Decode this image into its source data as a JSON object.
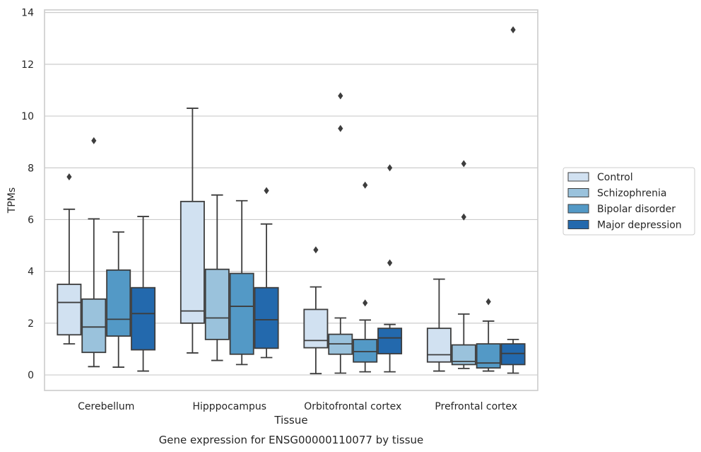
{
  "chart_data": {
    "type": "box",
    "title": "",
    "xlabel": "Tissue",
    "ylabel": "TPMs",
    "caption": "Gene expression for ENSG00000110077 by tissue",
    "ylim": [
      -0.6,
      14.1
    ],
    "yticks": [
      0,
      2,
      4,
      6,
      8,
      10,
      12,
      14
    ],
    "grid": "horizontal",
    "legend_position": "right",
    "categories": [
      "Cerebellum",
      "Hipppocampus",
      "Orbitofrontal cortex",
      "Prefrontal cortex"
    ],
    "series": [
      {
        "name": "Control",
        "color": "#d1e1f1",
        "boxes": [
          {
            "whislo": 1.2,
            "q1": 1.55,
            "med": 2.8,
            "q3": 3.5,
            "whishi": 6.4,
            "fliers": [
              7.65
            ]
          },
          {
            "whislo": 0.85,
            "q1": 2.0,
            "med": 2.47,
            "q3": 6.7,
            "whishi": 10.3,
            "fliers": []
          },
          {
            "whislo": 0.05,
            "q1": 1.05,
            "med": 1.33,
            "q3": 2.53,
            "whishi": 3.4,
            "fliers": [
              4.83
            ]
          },
          {
            "whislo": 0.15,
            "q1": 0.5,
            "med": 0.78,
            "q3": 1.8,
            "whishi": 3.7,
            "fliers": []
          }
        ]
      },
      {
        "name": "Schizophrenia",
        "color": "#9ac2dc",
        "boxes": [
          {
            "whislo": 0.32,
            "q1": 0.87,
            "med": 1.85,
            "q3": 2.93,
            "whishi": 6.03,
            "fliers": [
              9.05
            ]
          },
          {
            "whislo": 0.56,
            "q1": 1.37,
            "med": 2.2,
            "q3": 4.08,
            "whishi": 6.95,
            "fliers": []
          },
          {
            "whislo": 0.07,
            "q1": 0.8,
            "med": 1.2,
            "q3": 1.57,
            "whishi": 2.2,
            "fliers": [
              9.52,
              10.78
            ]
          },
          {
            "whislo": 0.25,
            "q1": 0.4,
            "med": 0.52,
            "q3": 1.16,
            "whishi": 2.35,
            "fliers": [
              6.1,
              8.16
            ]
          }
        ]
      },
      {
        "name": "Bipolar disorder",
        "color": "#5399c6",
        "boxes": [
          {
            "whislo": 0.3,
            "q1": 1.5,
            "med": 2.15,
            "q3": 4.05,
            "whishi": 5.52,
            "fliers": []
          },
          {
            "whislo": 0.4,
            "q1": 0.8,
            "med": 2.65,
            "q3": 3.92,
            "whishi": 6.73,
            "fliers": []
          },
          {
            "whislo": 0.12,
            "q1": 0.5,
            "med": 0.9,
            "q3": 1.37,
            "whishi": 2.12,
            "fliers": [
              2.78,
              7.33
            ]
          },
          {
            "whislo": 0.15,
            "q1": 0.27,
            "med": 0.46,
            "q3": 1.2,
            "whishi": 2.08,
            "fliers": [
              2.83
            ]
          }
        ]
      },
      {
        "name": "Major depression",
        "color": "#2369ad",
        "boxes": [
          {
            "whislo": 0.15,
            "q1": 0.97,
            "med": 2.37,
            "q3": 3.37,
            "whishi": 6.12,
            "fliers": []
          },
          {
            "whislo": 0.67,
            "q1": 1.03,
            "med": 2.13,
            "q3": 3.37,
            "whishi": 5.83,
            "fliers": [
              7.12
            ]
          },
          {
            "whislo": 0.12,
            "q1": 0.82,
            "med": 1.43,
            "q3": 1.8,
            "whishi": 1.95,
            "fliers": [
              4.33,
              8.0
            ]
          },
          {
            "whislo": 0.07,
            "q1": 0.4,
            "med": 0.83,
            "q3": 1.2,
            "whishi": 1.37,
            "fliers": [
              13.33
            ]
          }
        ]
      }
    ]
  }
}
